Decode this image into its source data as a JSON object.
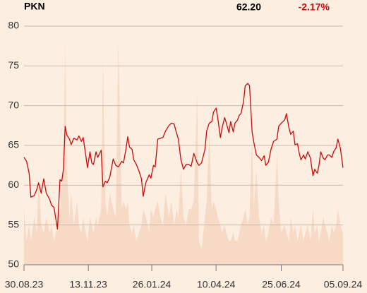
{
  "chart_data": {
    "type": "line",
    "title": "PKN",
    "price": "62.20",
    "change": "-2.17%",
    "x": [
      "30.08.23",
      "02.09.23",
      "05.09.23",
      "07.09.23",
      "11.09.23",
      "14.09.23",
      "16.09.23",
      "19.09.23",
      "22.09.23",
      "25.09.23",
      "29.09.23",
      "01.10.23",
      "04.10.23",
      "08.10.23",
      "11.10.23",
      "13.10.23",
      "15.10.23",
      "17.10.23",
      "19.10.23",
      "22.10.23",
      "24.10.23",
      "27.10.23",
      "31.10.23",
      "02.11.23",
      "05.11.23",
      "07.11.23",
      "10.11.23",
      "12.11.23",
      "15.11.23",
      "17.11.23",
      "19.11.23",
      "22.11.23",
      "24.11.23",
      "28.11.23",
      "30.11.23",
      "03.12.23",
      "05.12.23",
      "08.12.23",
      "12.12.23",
      "15.12.23",
      "18.12.23",
      "22.12.23",
      "24.12.23",
      "27.12.23",
      "29.12.23",
      "31.12.23",
      "03.01.24",
      "05.01.24",
      "08.01.24",
      "11.01.24",
      "14.01.24",
      "16.01.24",
      "19.01.24",
      "23.01.24",
      "25.01.24",
      "28.01.24",
      "30.01.24",
      "02.02.24",
      "05.02.24",
      "08.02.24",
      "11.02.24",
      "15.02.24",
      "18.02.24",
      "21.02.24",
      "24.02.24",
      "26.02.24",
      "29.02.24",
      "03.03.24",
      "06.03.24",
      "09.03.24",
      "12.03.24",
      "15.03.24",
      "19.03.24",
      "21.03.24",
      "24.03.24",
      "28.03.24",
      "30.03.24",
      "02.04.24",
      "05.04.24",
      "07.04.24",
      "10.04.24",
      "12.04.24",
      "15.04.24",
      "17.04.24",
      "20.04.24",
      "22.04.24",
      "25.04.24",
      "27.04.24",
      "30.04.24",
      "02.05.24",
      "05.05.24",
      "07.05.24",
      "09.05.24",
      "12.05.24",
      "14.05.24",
      "17.05.24",
      "19.05.24",
      "22.05.24",
      "24.05.24",
      "27.05.24",
      "30.05.24",
      "02.06.24",
      "05.06.24",
      "07.06.24",
      "10.06.24",
      "13.06.24",
      "16.06.24",
      "20.06.24",
      "22.06.24",
      "25.06.24",
      "29.06.24",
      "01.07.24",
      "04.07.24",
      "06.07.24",
      "09.07.24",
      "11.07.24",
      "14.07.24",
      "16.07.24",
      "18.07.24",
      "21.07.24",
      "23.07.24",
      "26.07.24",
      "29.07.24",
      "01.08.24",
      "03.08.24",
      "06.08.24",
      "08.08.24",
      "10.08.24",
      "13.08.24",
      "15.08.24",
      "18.08.24",
      "20.08.24",
      "23.08.24",
      "25.08.24",
      "28.08.24",
      "30.08.24",
      "02.09.24",
      "05.09.24"
    ],
    "series": [
      {
        "color": "#cc0a0a",
        "values": [
          63.5,
          63,
          61.5,
          58.5,
          58.7,
          59.5,
          60.3,
          59,
          60.8,
          59,
          58.2,
          57.5,
          57.2,
          54.5,
          60.7,
          60.5,
          62,
          67.4,
          66.3,
          65.8,
          65.1,
          65.9,
          65.7,
          66.2,
          65.5,
          66,
          63.8,
          62.2,
          64.2,
          62.8,
          62.6,
          64.2,
          63.5,
          64.4,
          59.8,
          60.5,
          60.3,
          61,
          63.3,
          62.5,
          62.3,
          63,
          62.8,
          64.6,
          66.1,
          64.8,
          64.5,
          63.2,
          62.6,
          61.8,
          60.8,
          58.6,
          60.3,
          61.3,
          60.9,
          62.5,
          62.3,
          65.8,
          65.9,
          66,
          66.8,
          67.5,
          67.8,
          67.7,
          66.5,
          65.8,
          63.2,
          62,
          62.6,
          62.6,
          62.4,
          64,
          62.8,
          62.5,
          62.8,
          64.5,
          66.8,
          67.8,
          68,
          69.2,
          69.7,
          68.4,
          66,
          67.2,
          68.5,
          67.8,
          66.6,
          68,
          66.7,
          67.8,
          68.2,
          68.8,
          69,
          70.5,
          72.5,
          72.8,
          72.5,
          66.7,
          65.4,
          63.8,
          63.5,
          63.1,
          63.7,
          62.5,
          62.9,
          64.5,
          65.5,
          65.8,
          67.4,
          67.8,
          68.2,
          69,
          67.2,
          66.4,
          66.8,
          65.1,
          65.2,
          64,
          63.2,
          63.8,
          63.3,
          64.2,
          63.4,
          61.2,
          62,
          61.5,
          62.5,
          64.2,
          63.4,
          63.2,
          63.8,
          63.8,
          63.5,
          64.2,
          64.7,
          65.8,
          64.6,
          62.2
        ]
      }
    ],
    "volume": {
      "color": "#f7dac6",
      "values": [
        57,
        53,
        55,
        53,
        56,
        54,
        61,
        55,
        54,
        56,
        54,
        55,
        53,
        55,
        57,
        60,
        63,
        78,
        62,
        56,
        59,
        55,
        58,
        55,
        54,
        56,
        54,
        53,
        56,
        55,
        54,
        56,
        55,
        57,
        76,
        58,
        56,
        59,
        57,
        56,
        78,
        57,
        58,
        57,
        58,
        55,
        54,
        55,
        53,
        54,
        55,
        57,
        56,
        54,
        57,
        56,
        57,
        58,
        56,
        55,
        59,
        56,
        58,
        55,
        57,
        56,
        62,
        56,
        55,
        57,
        57,
        58,
        71.5,
        53,
        52,
        56,
        58,
        67,
        57,
        58,
        57,
        56,
        55,
        54,
        55,
        54,
        53,
        53,
        54,
        53,
        53,
        54,
        55,
        56,
        57,
        55,
        56,
        66,
        57,
        62,
        56,
        54,
        55,
        53,
        54,
        56,
        55,
        64,
        58,
        54,
        55,
        54,
        53,
        56,
        54,
        55,
        53,
        54,
        55,
        53,
        54,
        55,
        53,
        57,
        54,
        55,
        53,
        54,
        56,
        55,
        54,
        53,
        55,
        54,
        55,
        57,
        55,
        54
      ]
    },
    "xlim": [
      "30.08.23",
      "05.09.24"
    ],
    "xticks": [
      "30.08.23",
      "13.11.23",
      "26.01.24",
      "10.04.24",
      "25.06.24",
      "05.09.24"
    ],
    "ylim": [
      50,
      80
    ],
    "yticks": [
      50,
      55,
      60,
      65,
      70,
      75,
      80
    ],
    "grid": true
  }
}
